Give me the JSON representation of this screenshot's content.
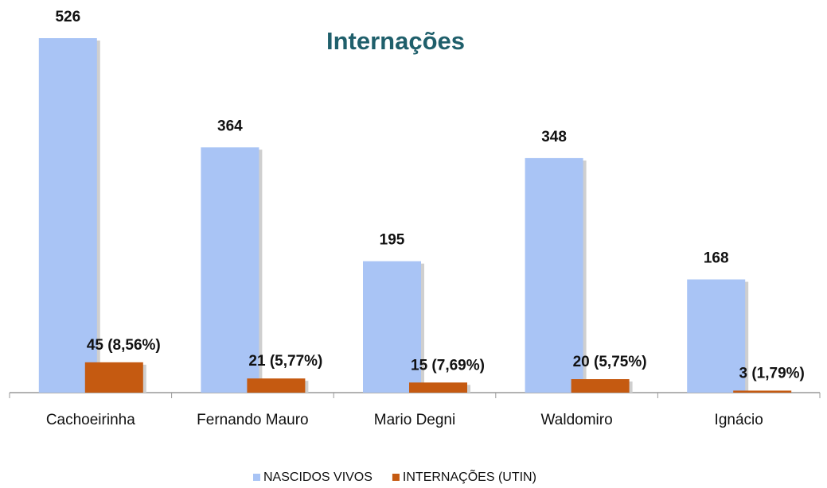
{
  "chart_data": {
    "type": "bar",
    "title": "Internações",
    "categories": [
      "Cachoeirinha",
      "Fernando Mauro",
      "Mario Degni",
      "Waldomiro",
      "Ignácio"
    ],
    "series": [
      {
        "name": "NASCIDOS VIVOS",
        "color": "#a9c4f5",
        "values": [
          526,
          364,
          195,
          348,
          168
        ]
      },
      {
        "name": "INTERNAÇÕES (UTIN)",
        "color": "#c55a11",
        "values": [
          45,
          21,
          15,
          20,
          3
        ],
        "value_labels": [
          "45 (8,56%)",
          "21 (5,77%)",
          "15 (7,69%)",
          "20 (5,75%)",
          "3 (1,79%)"
        ]
      }
    ],
    "legend": "bottom"
  }
}
